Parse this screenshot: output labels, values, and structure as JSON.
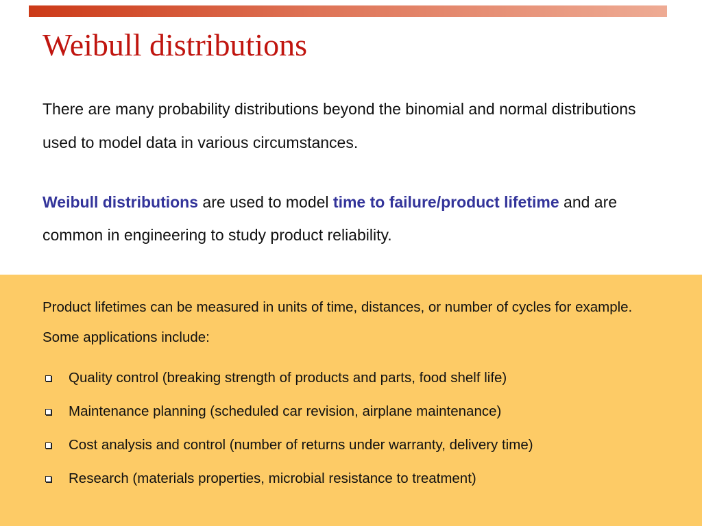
{
  "slide": {
    "title": "Weibull distributions",
    "intro": "There are many probability distributions beyond the binomial and normal distributions used to model data in various circumstances.",
    "weibull_paragraph": {
      "term": "Weibull distributions",
      "middle": " are used to model ",
      "concept": "time to failure/product lifetime",
      "end": " and are common in engineering to study product reliability."
    },
    "panel": {
      "text": "Product lifetimes can be measured in units of time, distances, or number of cycles for example. Some applications include:",
      "bullets": [
        "Quality control (breaking strength of products and parts, food shelf life)",
        "Maintenance planning (scheduled car revision, airplane maintenance)",
        "Cost analysis and control (number of returns under warranty, delivery time)",
        "Research (materials properties, microbial resistance to treatment)"
      ]
    }
  },
  "colors": {
    "title": "#c0150f",
    "emphasis": "#33349a",
    "panel_background": "#fdcb66",
    "top_bar_start": "#cc3a18",
    "top_bar_end": "#eeab94"
  },
  "icons": {
    "bullet": "hollow-square-bullet-icon"
  }
}
